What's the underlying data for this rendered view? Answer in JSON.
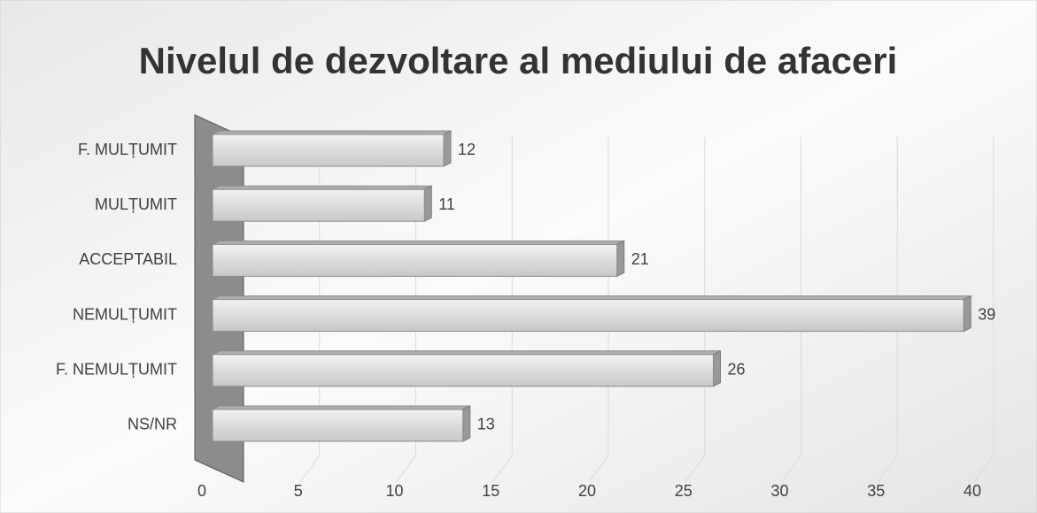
{
  "chart_data": {
    "type": "bar",
    "orientation": "horizontal",
    "title": "Nivelul de dezvoltare al mediului de afaceri",
    "categories": [
      "F. MULȚUMIT",
      "MULȚUMIT",
      "ACCEPTABIL",
      "NEMULȚUMIT",
      "F. NEMULȚUMIT",
      "NS/NR"
    ],
    "values": [
      12,
      11,
      21,
      39,
      26,
      13
    ],
    "color": "#d9d9d9",
    "xlim": [
      0,
      40
    ],
    "xticks": [
      0,
      5,
      10,
      15,
      20,
      25,
      30,
      35,
      40
    ],
    "grid": true
  }
}
